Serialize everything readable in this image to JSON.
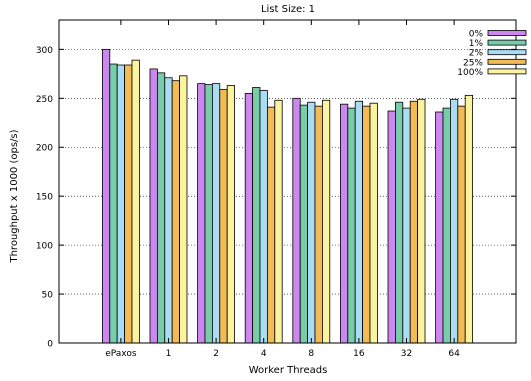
{
  "chart_data": {
    "type": "bar",
    "title": "List Size: 1",
    "xlabel": "Worker Threads",
    "ylabel": "Throughput x 1000 (ops/s)",
    "ylim": [
      0,
      330
    ],
    "yticks": [
      0,
      50,
      100,
      150,
      200,
      250,
      300
    ],
    "grid": true,
    "legend_position": "top-right",
    "categories": [
      "ePaxos",
      "1",
      "2",
      "4",
      "8",
      "16",
      "32",
      "64"
    ],
    "series": [
      {
        "name": "0%",
        "color": "#cc88ee",
        "values": [
          300,
          280,
          265,
          255,
          250,
          244,
          237,
          236
        ]
      },
      {
        "name": "1%",
        "color": "#77ccaa",
        "values": [
          285,
          276,
          264,
          261,
          243,
          240,
          246,
          240
        ]
      },
      {
        "name": "2%",
        "color": "#aaddf2",
        "values": [
          284,
          271,
          265,
          258,
          246,
          247,
          240,
          249
        ]
      },
      {
        "name": "25%",
        "color": "#f2bb55",
        "values": [
          284,
          268,
          259,
          241,
          242,
          242,
          247,
          242
        ]
      },
      {
        "name": "100%",
        "color": "#fbf3a0",
        "values": [
          289,
          273,
          263,
          248,
          248,
          245,
          249,
          253
        ]
      }
    ]
  }
}
